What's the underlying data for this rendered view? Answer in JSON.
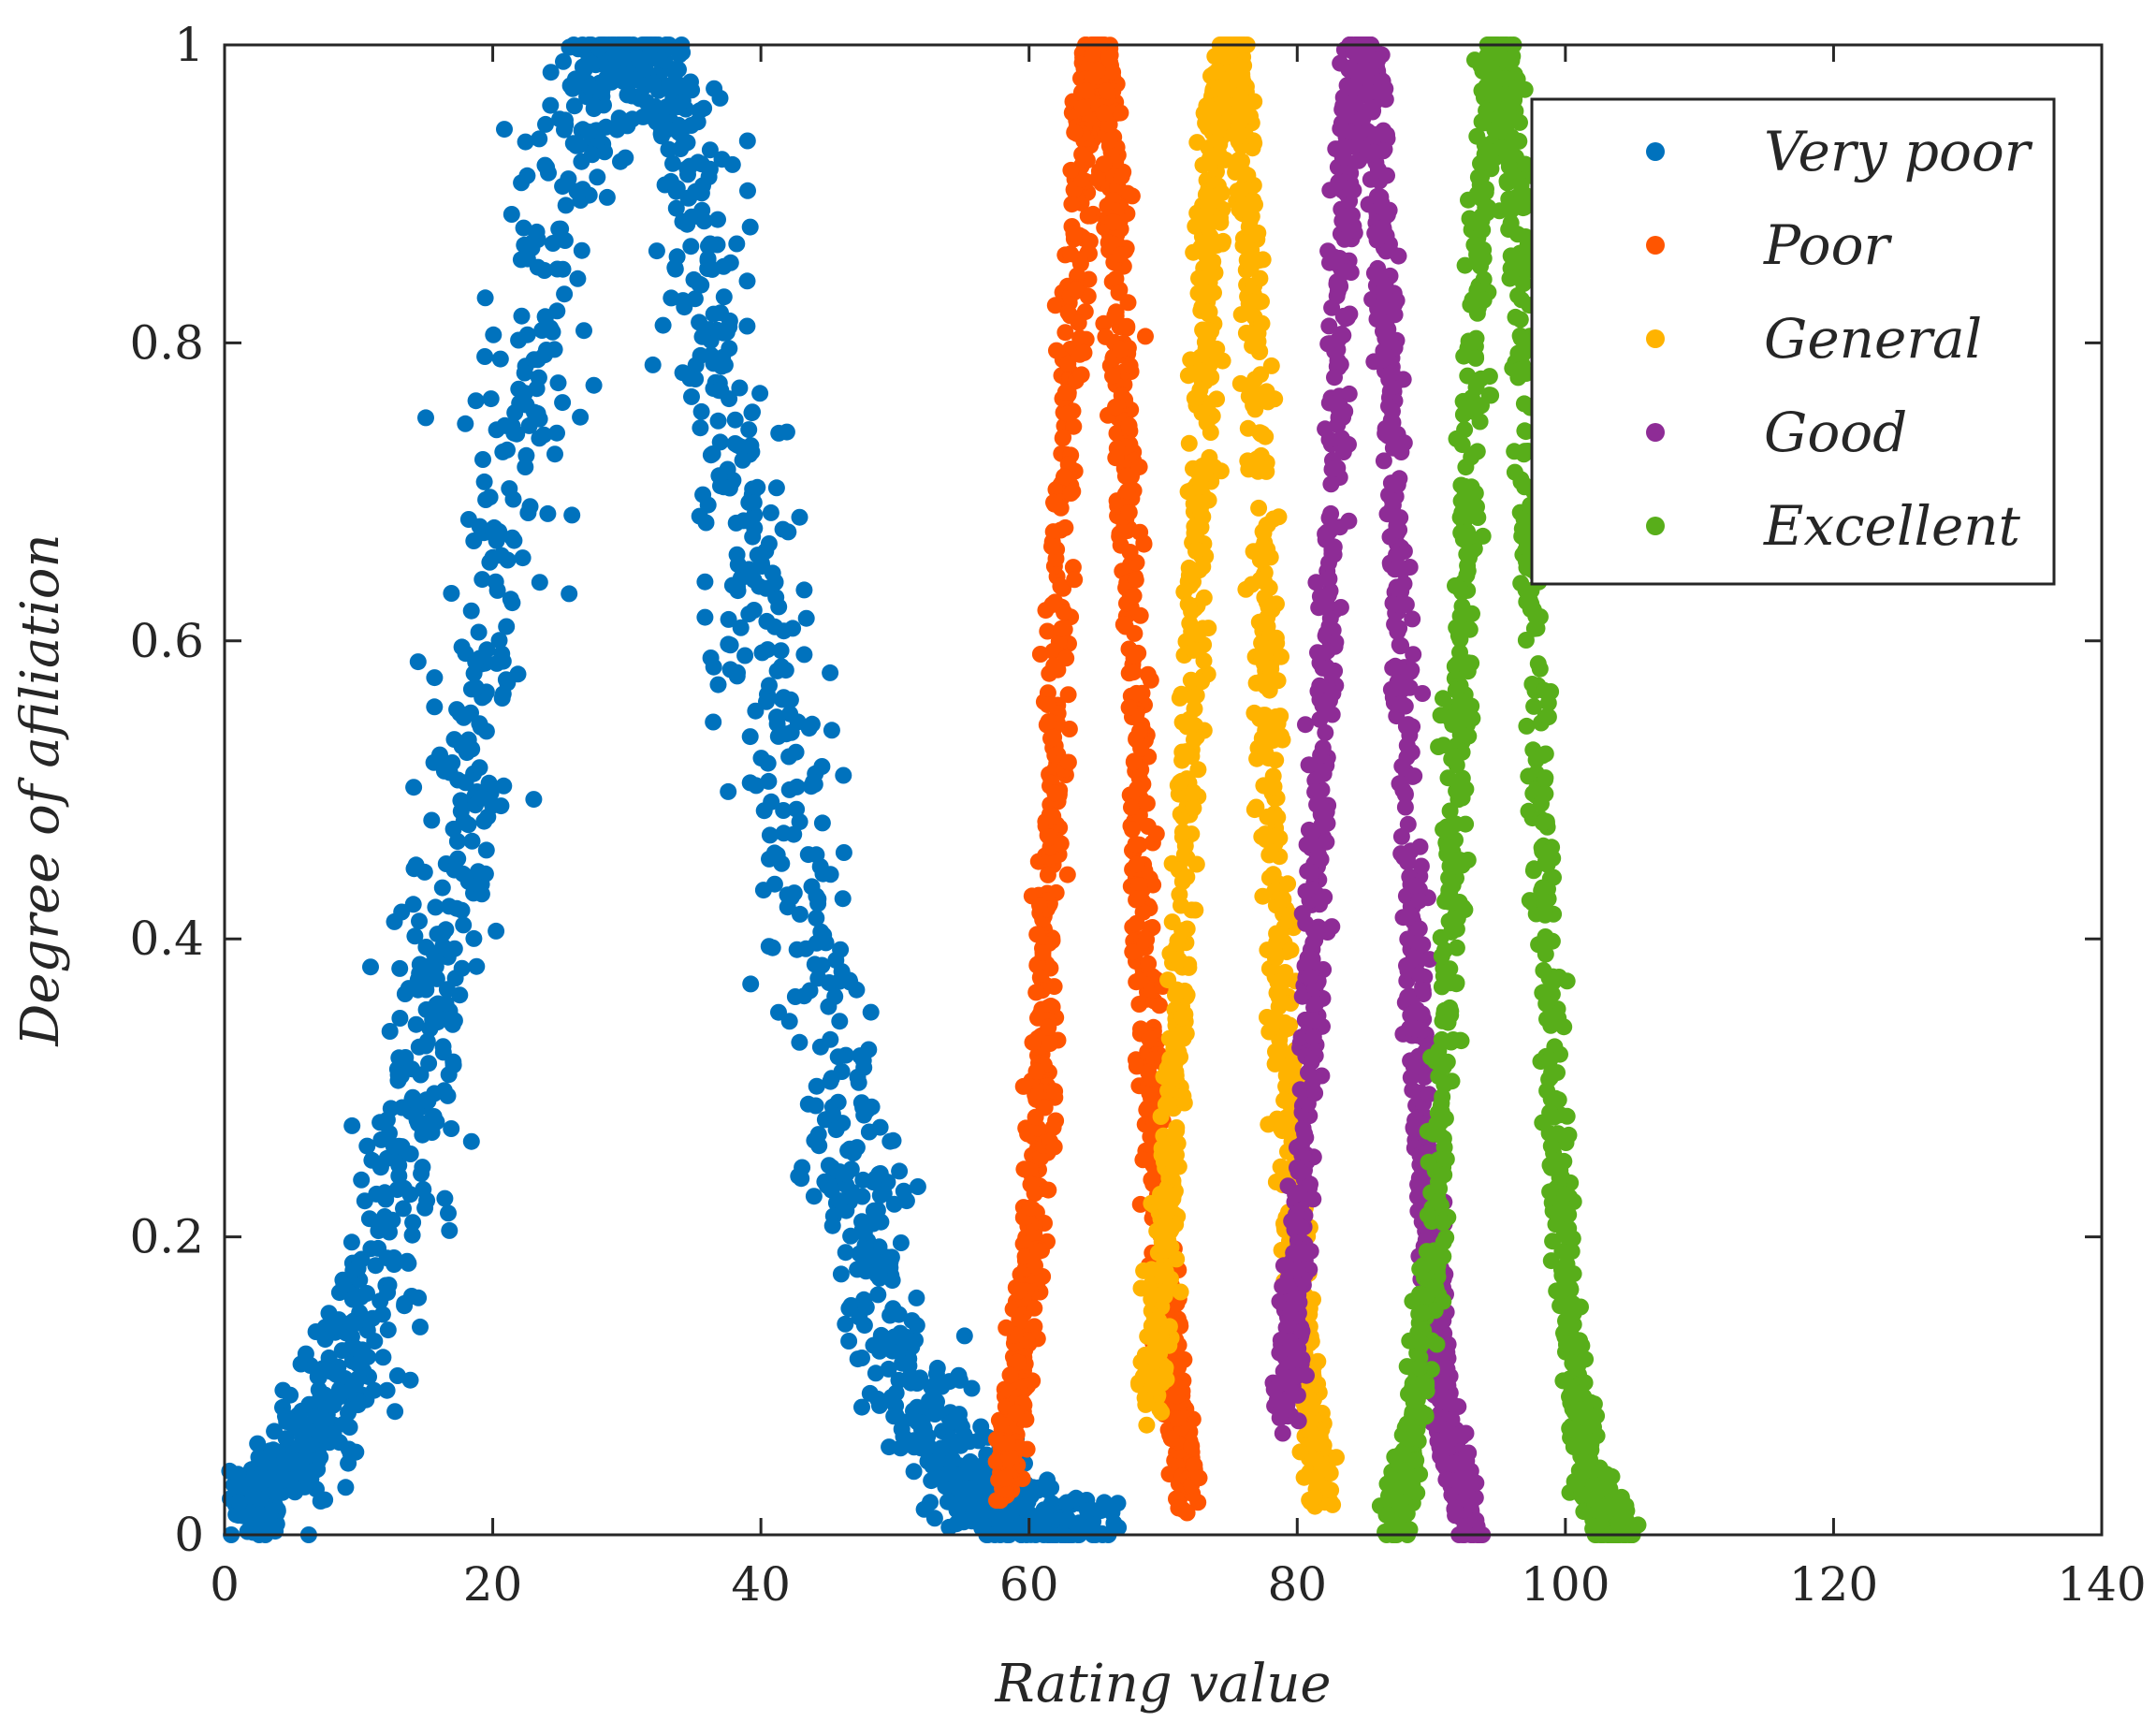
{
  "chart_data": {
    "type": "scatter",
    "title": "",
    "xlabel": "Rating value",
    "ylabel": "Degree of afiliation",
    "xlim": [
      0,
      140
    ],
    "ylim": [
      0,
      1
    ],
    "xticks": [
      0,
      20,
      40,
      60,
      80,
      100,
      120,
      140
    ],
    "yticks": [
      0,
      0.2,
      0.4,
      0.6,
      0.8,
      1
    ],
    "ytick_labels": [
      "0",
      "0.2",
      "0.4",
      "0.6",
      "0.8",
      "1"
    ],
    "grid": false,
    "legend_position": "top-right",
    "series": [
      {
        "name": "Very poor",
        "color": "#0072BD",
        "shape": "gaussian",
        "center": 30,
        "spread": 10,
        "x_range": [
          0,
          64
        ],
        "point_count": 1600
      },
      {
        "name": "Poor",
        "color": "#FF5500",
        "shape": "gaussian",
        "center": 65,
        "spread": 2.7,
        "x_range": [
          58,
          72
        ],
        "point_count": 1200
      },
      {
        "name": "General",
        "color": "#FFB300",
        "shape": "gaussian",
        "center": 75,
        "spread": 2.7,
        "x_range": [
          69,
          82
        ],
        "point_count": 1200
      },
      {
        "name": "Good",
        "color": "#8E2C96",
        "shape": "gaussian",
        "center": 85,
        "spread": 2.7,
        "x_range": [
          79,
          93
        ],
        "point_count": 1200
      },
      {
        "name": "Excellent",
        "color": "#58AE1A",
        "shape": "gaussian",
        "center": 95,
        "spread": 2.7,
        "x_range": [
          87,
          104.5
        ],
        "point_count": 1200
      }
    ]
  }
}
